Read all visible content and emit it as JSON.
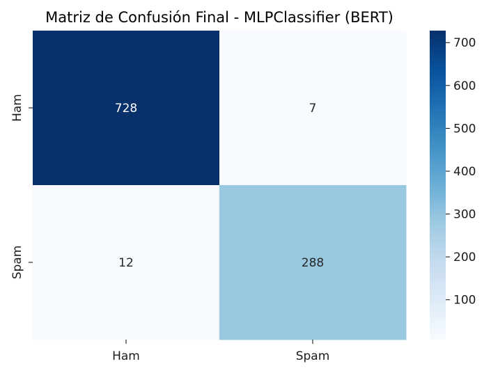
{
  "chart_data": {
    "type": "heatmap",
    "title": "Matriz de Confusión Final - MLPClassifier (BERT)",
    "xlabel": "",
    "ylabel": "",
    "x_categories": [
      "Ham",
      "Spam"
    ],
    "y_categories": [
      "Ham",
      "Spam"
    ],
    "values": [
      [
        728,
        7
      ],
      [
        12,
        288
      ]
    ],
    "colormap": "Blues",
    "colorbar": {
      "vmin": 7,
      "vmax": 728,
      "ticks": [
        100,
        200,
        300,
        400,
        500,
        600,
        700
      ]
    },
    "grid": false,
    "legend": "colorbar-right"
  },
  "colors": {
    "text_dark": "#262626",
    "text_light": "#ffffff",
    "title": "#1a1a1a"
  }
}
